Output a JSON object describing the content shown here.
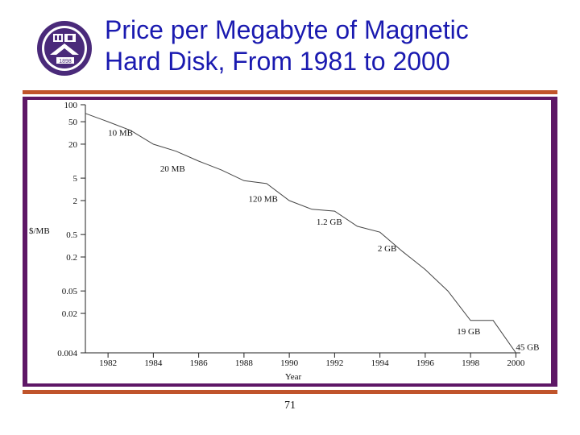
{
  "slide": {
    "title_line1": "Price per Megabyte of Magnetic",
    "title_line2": "Hard Disk, From 1981 to 2000",
    "page_number": "71",
    "logo_text": "1898"
  },
  "colors": {
    "title": "#1a1ab0",
    "rule": "#c0542b",
    "frame": "#5e1766",
    "logo": "#4a2a7a"
  },
  "chart_data": {
    "type": "line",
    "title": "",
    "xlabel": "Year",
    "ylabel": "$/MB",
    "yscale": "log",
    "xlim": [
      1981,
      2000.2
    ],
    "ylim": [
      0.004,
      100
    ],
    "x_ticks": [
      1982,
      1984,
      1986,
      1988,
      1990,
      1992,
      1994,
      1996,
      1998,
      2000
    ],
    "x_tick_labels": [
      "1982",
      "1984",
      "1986",
      "1988",
      "1990",
      "1992",
      "1994",
      "1996",
      "1998",
      "2000"
    ],
    "y_ticks": [
      100,
      50,
      20,
      5,
      2,
      0.5,
      0.2,
      0.05,
      0.02,
      0.004
    ],
    "y_tick_labels": [
      "100",
      "50",
      "20",
      "5",
      "2",
      "0.5",
      "0.2",
      "0.05",
      "0.02",
      "0.004"
    ],
    "grid": false,
    "series": [
      {
        "x": [
          1981,
          1982,
          1983,
          1984,
          1985,
          1986,
          1987,
          1988,
          1989,
          1990,
          1991,
          1992,
          1993,
          1994,
          1995,
          1996,
          1997,
          1998,
          1999,
          2000
        ],
        "y": [
          70,
          50,
          35,
          20,
          15,
          10,
          7,
          4.5,
          4.0,
          2.0,
          1.4,
          1.3,
          0.7,
          0.55,
          0.25,
          0.12,
          0.05,
          0.015,
          0.015,
          0.004
        ]
      }
    ],
    "annotations": [
      {
        "text": "10 MB",
        "x": 1982.0,
        "y": 28
      },
      {
        "text": "20 MB",
        "x": 1984.3,
        "y": 6.5
      },
      {
        "text": "120 MB",
        "x": 1988.2,
        "y": 1.9
      },
      {
        "text": "1.2 GB",
        "x": 1991.2,
        "y": 0.75
      },
      {
        "text": "2 GB",
        "x": 1993.9,
        "y": 0.25
      },
      {
        "text": "19 GB",
        "x": 1997.4,
        "y": 0.0085
      },
      {
        "text": "45 GB",
        "x": 2000.0,
        "y": 0.0045
      }
    ]
  }
}
